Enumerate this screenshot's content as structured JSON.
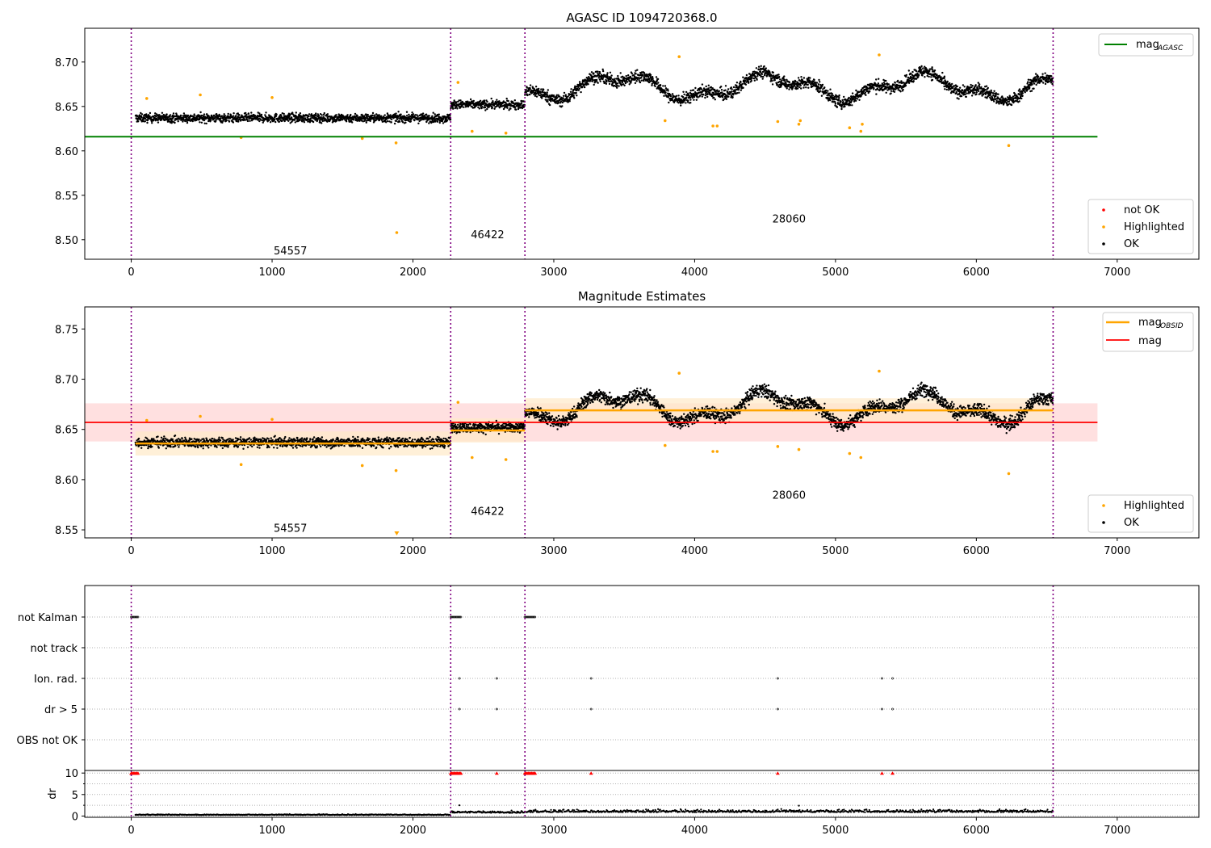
{
  "figure": {
    "title": "AGASC ID 1094720368.0",
    "colors": {
      "ok": "#000000",
      "highlighted": "#ffa500",
      "not_ok": "#ff0000",
      "mag_agasc": "#008000",
      "mag_obsid": "#ffa500",
      "mag": "#ff0000",
      "obs_boundary": "#800080",
      "band_mag": "#ffe0e0",
      "band_obsid": "#ffe9c8"
    }
  },
  "chart_data": [
    {
      "type": "scatter",
      "title": "",
      "xlabel": "",
      "ylabel": "",
      "xlim": [
        -330,
        7580
      ],
      "ylim": [
        8.478,
        8.738
      ],
      "xticks": [
        0,
        1000,
        2000,
        3000,
        4000,
        5000,
        6000,
        7000
      ],
      "yticks": [
        8.5,
        8.55,
        8.6,
        8.65,
        8.7
      ],
      "grid": false,
      "obs_boundaries": [
        0,
        2268,
        2795,
        6545
      ],
      "segments": [
        {
          "obsid": "54557",
          "x_start": 30,
          "x_end": 2268,
          "level": 8.637,
          "spread": 0.008,
          "label_x": 1130,
          "label_y": 8.488
        },
        {
          "obsid": "46422",
          "x_start": 2268,
          "x_end": 2795,
          "level": 8.652,
          "spread": 0.008,
          "label_x": 2530,
          "label_y": 8.506
        },
        {
          "obsid": "28060",
          "x_start": 2795,
          "x_end": 6545,
          "level": 8.672,
          "spread": 0.011,
          "label_x": 4670,
          "label_y": 8.524
        }
      ],
      "highlighted": [
        [
          110,
          8.659
        ],
        [
          490,
          8.663
        ],
        [
          780,
          8.615
        ],
        [
          1000,
          8.66
        ],
        [
          1640,
          8.614
        ],
        [
          1880,
          8.609
        ],
        [
          1885,
          8.508
        ],
        [
          2320,
          8.677
        ],
        [
          2420,
          8.622
        ],
        [
          2660,
          8.62
        ],
        [
          3790,
          8.634
        ],
        [
          3890,
          8.706
        ],
        [
          4130,
          8.628
        ],
        [
          4160,
          8.628
        ],
        [
          4590,
          8.633
        ],
        [
          4740,
          8.63
        ],
        [
          4750,
          8.634
        ],
        [
          5100,
          8.626
        ],
        [
          5180,
          8.622
        ],
        [
          5190,
          8.63
        ],
        [
          5310,
          8.708
        ],
        [
          6230,
          8.606
        ]
      ],
      "lines": [
        {
          "name": "mag_AGASC",
          "y": 8.616,
          "x_start": -330,
          "x_end": 6860,
          "color": "#008000"
        }
      ],
      "legends": [
        {
          "position": "upper-right",
          "entries": [
            "mag",
            "AGASC"
          ]
        },
        {
          "position": "lower-right",
          "entries": [
            "not OK",
            "Highlighted",
            "OK"
          ]
        }
      ]
    },
    {
      "type": "scatter",
      "title": "Magnitude Estimates",
      "xlabel": "",
      "ylabel": "",
      "xlim": [
        -330,
        7580
      ],
      "ylim": [
        8.542,
        8.772
      ],
      "xticks": [
        0,
        1000,
        2000,
        3000,
        4000,
        5000,
        6000,
        7000
      ],
      "yticks": [
        8.55,
        8.6,
        8.65,
        8.7,
        8.75
      ],
      "grid": false,
      "obs_boundaries": [
        0,
        2268,
        2795,
        6545
      ],
      "segments": [
        {
          "obsid": "54557",
          "x_start": 30,
          "x_end": 2268,
          "level": 8.637,
          "spread": 0.008,
          "label_x": 1130,
          "label_y": 8.552,
          "mag_obsid": 8.636
        },
        {
          "obsid": "46422",
          "x_start": 2268,
          "x_end": 2795,
          "level": 8.652,
          "spread": 0.008,
          "label_x": 2530,
          "label_y": 8.569,
          "mag_obsid": 8.649
        },
        {
          "obsid": "28060",
          "x_start": 2795,
          "x_end": 6545,
          "level": 8.672,
          "spread": 0.011,
          "label_x": 4670,
          "label_y": 8.585,
          "mag_obsid": 8.669
        }
      ],
      "highlighted": [
        [
          110,
          8.659
        ],
        [
          490,
          8.663
        ],
        [
          780,
          8.615
        ],
        [
          1000,
          8.66
        ],
        [
          1640,
          8.614
        ],
        [
          1880,
          8.609
        ],
        [
          2320,
          8.677
        ],
        [
          2420,
          8.622
        ],
        [
          2660,
          8.62
        ],
        [
          3790,
          8.634
        ],
        [
          3890,
          8.706
        ],
        [
          4130,
          8.628
        ],
        [
          4160,
          8.628
        ],
        [
          4590,
          8.633
        ],
        [
          4740,
          8.63
        ],
        [
          5100,
          8.626
        ],
        [
          5180,
          8.622
        ],
        [
          5310,
          8.708
        ],
        [
          6230,
          8.606
        ]
      ],
      "marker_below": {
        "x": 1885,
        "y": 8.546
      },
      "mag": {
        "y": 8.657,
        "band": [
          8.638,
          8.676
        ],
        "x_start": -330,
        "x_end": 6860
      },
      "legends": [
        {
          "position": "upper-right",
          "entries": [
            "mag",
            "OBSID",
            "mag"
          ]
        },
        {
          "position": "lower-right",
          "entries": [
            "Highlighted",
            "OK"
          ]
        }
      ]
    },
    {
      "type": "scatter",
      "title": "",
      "xlabel": "",
      "ylabel": "",
      "xlim": [
        -330,
        7580
      ],
      "xticks": [
        0,
        1000,
        2000,
        3000,
        4000,
        5000,
        6000,
        7000
      ],
      "grid": true,
      "flag_rows": [
        "not Kalman",
        "not track",
        "Ion. rad.",
        "dr > 5",
        "OBS not OK"
      ],
      "obs_boundaries": [
        0,
        2268,
        2795,
        6545
      ],
      "flags": {
        "not Kalman": [
          [
            0,
            55
          ],
          [
            2268,
            2340
          ],
          [
            2795,
            2870
          ]
        ],
        "not track": [],
        "Ion. rad.": [
          2330,
          2595,
          3265,
          4590,
          5330,
          5405
        ],
        "dr > 5": [
          2330,
          2595,
          3265,
          4590,
          5330,
          5405
        ],
        "OBS not OK": []
      }
    },
    {
      "type": "scatter",
      "title": "",
      "xlabel": "",
      "ylabel": "dr",
      "xlim": [
        -330,
        7580
      ],
      "ylim": [
        -0.3,
        10.6
      ],
      "xticks": [
        0,
        1000,
        2000,
        3000,
        4000,
        5000,
        6000,
        7000
      ],
      "yticks": [
        0,
        5,
        10
      ],
      "grid": true,
      "obs_boundaries": [
        0,
        2268,
        2795,
        6545
      ],
      "dr_level": [
        {
          "x_start": 30,
          "x_end": 2268,
          "level": 0.3
        },
        {
          "x_start": 2268,
          "x_end": 2795,
          "level": 0.9
        },
        {
          "x_start": 2795,
          "x_end": 6545,
          "level": 1.1
        }
      ],
      "clipped_at_10": [
        [
          0,
          55
        ],
        [
          2268,
          2340
        ],
        [
          2795,
          2870
        ],
        2595,
        3265,
        4590,
        5330,
        5405
      ],
      "outliers": [
        [
          2330,
          2.5
        ],
        [
          4740,
          2.4
        ]
      ]
    }
  ]
}
